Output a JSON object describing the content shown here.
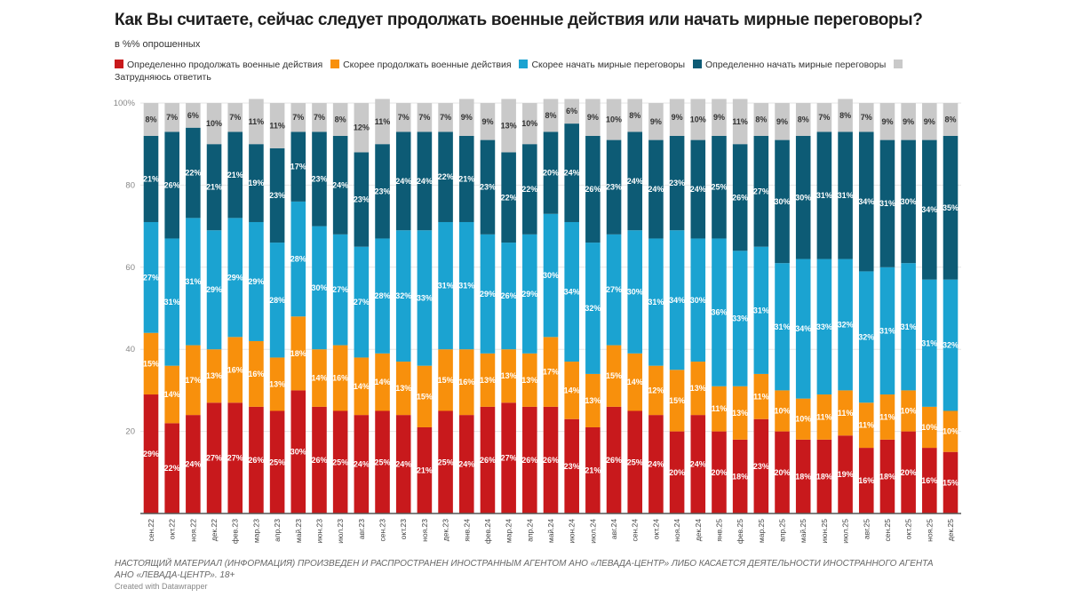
{
  "chart_data": {
    "type": "bar",
    "stacked": true,
    "title": "Как Вы считаете, сейчас следует продолжать военные действия или начать мирные переговоры?",
    "subtitle": "в %% опрошенных",
    "ylim": [
      0,
      100
    ],
    "yticks": [
      {
        "value": 100,
        "label": "100%"
      },
      {
        "value": 80,
        "label": "80"
      },
      {
        "value": 60,
        "label": "60"
      },
      {
        "value": 40,
        "label": "40"
      },
      {
        "value": 20,
        "label": "20"
      }
    ],
    "grid": true,
    "legend_position": "top",
    "categories": [
      "сен.22",
      "окт.22",
      "ноя.22",
      "дек.22",
      "фев.23",
      "мар.23",
      "апр.23",
      "май.23",
      "июн.23",
      "июл.23",
      "авг.23",
      "сен.23",
      "окт.23",
      "ноя.23",
      "дек.23",
      "янв.24",
      "фев.24",
      "мар.24",
      "апр.24",
      "май.24",
      "июн.24",
      "июл.24",
      "авг.24",
      "сен.24",
      "окт.24",
      "ноя.24",
      "дек.24",
      "янв.25",
      "фев.25",
      "мар.25",
      "апр.25",
      "май.25",
      "июн.25",
      "июл.25",
      "авг.25",
      "сен.25",
      "окт.25",
      "ноя.25",
      "дек.25"
    ],
    "series": [
      {
        "name": "Определенно продолжать военные действия",
        "color": "#c8191c",
        "label_color": "#ffffff",
        "values": [
          29,
          22,
          24,
          27,
          27,
          26,
          25,
          30,
          26,
          25,
          24,
          25,
          24,
          21,
          25,
          24,
          26,
          27,
          26,
          26,
          23,
          21,
          26,
          25,
          24,
          20,
          24,
          20,
          18,
          23,
          20,
          18,
          18,
          19,
          16,
          18,
          20,
          16,
          15
        ]
      },
      {
        "name": "Скорее продолжать военные действия",
        "color": "#f8900c",
        "label_color": "#ffffff",
        "values": [
          15,
          14,
          17,
          13,
          16,
          16,
          13,
          18,
          14,
          16,
          14,
          14,
          13,
          15,
          15,
          16,
          13,
          13,
          13,
          17,
          14,
          13,
          15,
          14,
          12,
          15,
          13,
          11,
          13,
          11,
          10,
          10,
          11,
          11,
          11,
          11,
          10,
          10,
          10
        ]
      },
      {
        "name": "Скорее начать мирные переговоры",
        "color": "#1ba3d1",
        "label_color": "#ffffff",
        "values": [
          27,
          31,
          31,
          29,
          29,
          29,
          28,
          28,
          30,
          27,
          27,
          28,
          32,
          33,
          31,
          31,
          29,
          26,
          29,
          30,
          34,
          32,
          27,
          30,
          31,
          34,
          30,
          36,
          33,
          31,
          31,
          34,
          33,
          32,
          32,
          31,
          31,
          31,
          32
        ]
      },
      {
        "name": "Определенно начать мирные переговоры",
        "color": "#0d5b75",
        "label_color": "#ffffff",
        "values": [
          21,
          26,
          22,
          21,
          21,
          19,
          23,
          17,
          23,
          24,
          23,
          23,
          24,
          24,
          22,
          21,
          23,
          22,
          22,
          20,
          24,
          26,
          23,
          24,
          24,
          23,
          24,
          25,
          26,
          27,
          30,
          30,
          31,
          31,
          34,
          31,
          30,
          34,
          35
        ]
      },
      {
        "name": "Затрудняюсь ответить",
        "color": "#c9c9c9",
        "label_color": "#333333",
        "values": [
          8,
          7,
          6,
          10,
          7,
          11,
          11,
          7,
          7,
          8,
          12,
          11,
          7,
          7,
          7,
          9,
          9,
          13,
          10,
          8,
          6,
          9,
          10,
          8,
          9,
          9,
          10,
          9,
          11,
          8,
          9,
          8,
          7,
          8,
          7,
          9,
          9,
          9,
          8
        ]
      }
    ]
  },
  "footer": {
    "disclaimer": "НАСТОЯЩИЙ МАТЕРИАЛ (ИНФОРМАЦИЯ) ПРОИЗВЕДЕН И РАСПРОСТРАНЕН ИНОСТРАННЫМ АГЕНТОМ АНО «ЛЕВАДА-ЦЕНТР» ЛИБО КАСАЕТСЯ ДЕЯТЕЛЬНОСТИ ИНОСТРАННОГО АГЕНТА АНО «ЛЕВАДА-ЦЕНТР». 18+",
    "credit": "Created with Datawrapper"
  }
}
